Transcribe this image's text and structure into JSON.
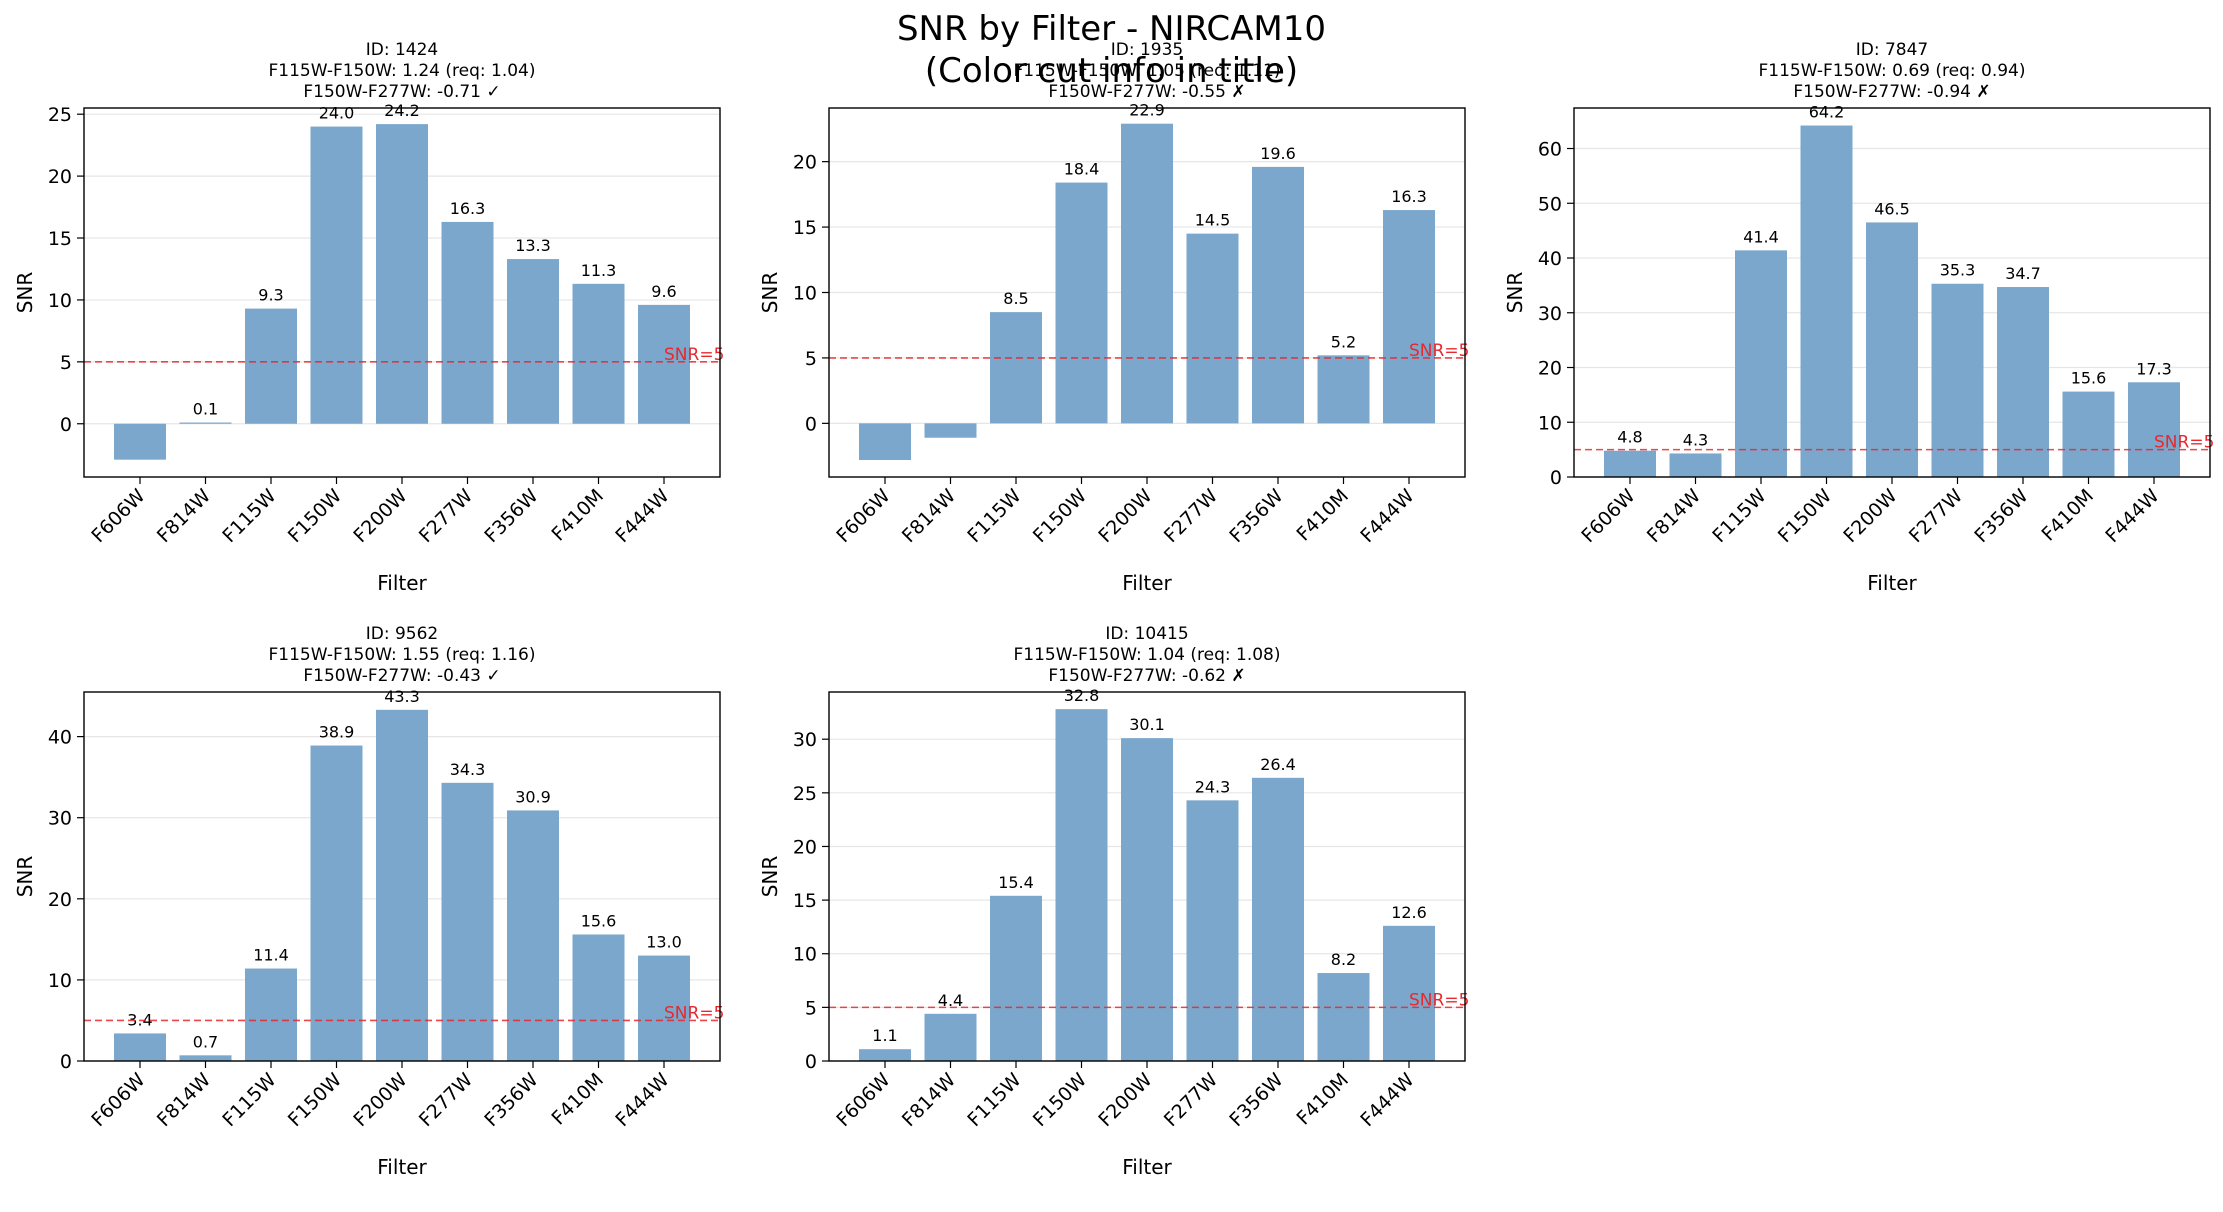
{
  "figure": {
    "suptitle_line1": "SNR by Filter - NIRCAM10",
    "suptitle_line2": "(Color cut info in title)"
  },
  "style": {
    "bar_color": "#7ba7cc",
    "threshold_color": "#e8282d",
    "grid": true
  },
  "chart_data": [
    {
      "type": "bar",
      "title_lines": [
        "ID: 1424",
        "F115W-F150W: 1.24 (req: 1.04)",
        "F150W-F277W: -0.71 ✓"
      ],
      "xlabel": "Filter",
      "ylabel": "SNR",
      "categories": [
        "F606W",
        "F814W",
        "F115W",
        "F150W",
        "F200W",
        "F277W",
        "F356W",
        "F410M",
        "F444W"
      ],
      "values": [
        -2.9,
        0.1,
        9.3,
        24.0,
        24.2,
        16.3,
        13.3,
        11.3,
        9.6
      ],
      "value_labels": [
        "",
        "0.1",
        "9.3",
        "24.0",
        "24.2",
        "16.3",
        "13.3",
        "11.3",
        "9.6"
      ],
      "ylim": [
        -4.3,
        25.5
      ],
      "yticks": [
        0,
        5,
        10,
        15,
        20,
        25
      ],
      "threshold": 5,
      "threshold_label": "SNR=5"
    },
    {
      "type": "bar",
      "title_lines": [
        "ID: 1935",
        "F115W-F150W: 1.05 (req: 1.11)",
        "F150W-F277W: -0.55 ✗"
      ],
      "xlabel": "Filter",
      "ylabel": "SNR",
      "categories": [
        "F606W",
        "F814W",
        "F115W",
        "F150W",
        "F200W",
        "F277W",
        "F356W",
        "F410M",
        "F444W"
      ],
      "values": [
        -2.8,
        -1.1,
        8.5,
        18.4,
        22.9,
        14.5,
        19.6,
        5.2,
        16.3
      ],
      "value_labels": [
        "",
        "",
        "8.5",
        "18.4",
        "22.9",
        "14.5",
        "19.6",
        "5.2",
        "16.3"
      ],
      "ylim": [
        -4.1,
        24.1
      ],
      "yticks": [
        0,
        5,
        10,
        15,
        20
      ],
      "threshold": 5,
      "threshold_label": "SNR=5"
    },
    {
      "type": "bar",
      "title_lines": [
        "ID: 7847",
        "F115W-F150W: 0.69 (req: 0.94)",
        "F150W-F277W: -0.94 ✗"
      ],
      "xlabel": "Filter",
      "ylabel": "SNR",
      "categories": [
        "F606W",
        "F814W",
        "F115W",
        "F150W",
        "F200W",
        "F277W",
        "F356W",
        "F410M",
        "F444W"
      ],
      "values": [
        4.8,
        4.3,
        41.4,
        64.2,
        46.5,
        35.3,
        34.7,
        15.6,
        17.3
      ],
      "value_labels": [
        "4.8",
        "4.3",
        "41.4",
        "64.2",
        "46.5",
        "35.3",
        "34.7",
        "15.6",
        "17.3"
      ],
      "ylim": [
        0,
        67.4
      ],
      "yticks": [
        0,
        10,
        20,
        30,
        40,
        50,
        60
      ],
      "threshold": 5,
      "threshold_label": "SNR=5"
    },
    {
      "type": "bar",
      "title_lines": [
        "ID: 9562",
        "F115W-F150W: 1.55 (req: 1.16)",
        "F150W-F277W: -0.43 ✓"
      ],
      "xlabel": "Filter",
      "ylabel": "SNR",
      "categories": [
        "F606W",
        "F814W",
        "F115W",
        "F150W",
        "F200W",
        "F277W",
        "F356W",
        "F410M",
        "F444W"
      ],
      "values": [
        3.4,
        0.7,
        11.4,
        38.9,
        43.3,
        34.3,
        30.9,
        15.6,
        13.0
      ],
      "value_labels": [
        "3.4",
        "0.7",
        "11.4",
        "38.9",
        "43.3",
        "34.3",
        "30.9",
        "15.6",
        "13.0"
      ],
      "ylim": [
        0,
        45.5
      ],
      "yticks": [
        0,
        10,
        20,
        30,
        40
      ],
      "threshold": 5,
      "threshold_label": "SNR=5"
    },
    {
      "type": "bar",
      "title_lines": [
        "ID: 10415",
        "F115W-F150W: 1.04 (req: 1.08)",
        "F150W-F277W: -0.62 ✗"
      ],
      "xlabel": "Filter",
      "ylabel": "SNR",
      "categories": [
        "F606W",
        "F814W",
        "F115W",
        "F150W",
        "F200W",
        "F277W",
        "F356W",
        "F410M",
        "F444W"
      ],
      "values": [
        1.1,
        4.4,
        15.4,
        32.8,
        30.1,
        24.3,
        26.4,
        8.2,
        12.6
      ],
      "value_labels": [
        "1.1",
        "4.4",
        "15.4",
        "32.8",
        "30.1",
        "24.3",
        "26.4",
        "8.2",
        "12.6"
      ],
      "ylim": [
        0,
        34.4
      ],
      "yticks": [
        0,
        5,
        10,
        15,
        20,
        25,
        30
      ],
      "threshold": 5,
      "threshold_label": "SNR=5"
    }
  ]
}
